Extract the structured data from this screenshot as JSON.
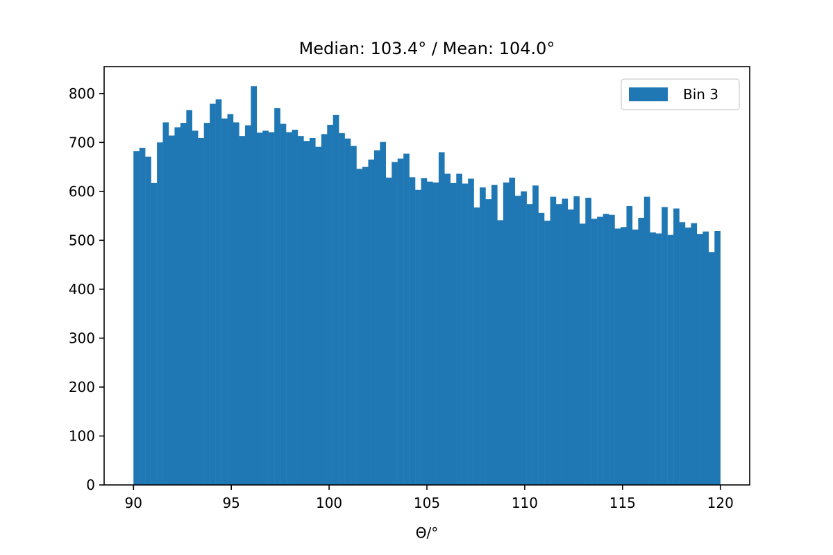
{
  "chart_data": {
    "type": "bar",
    "subtype": "histogram",
    "title": "Median: 103.4° / Mean: 104.0°",
    "xlabel": "Θ/°",
    "ylabel": "",
    "xlim": [
      88.5,
      121.5
    ],
    "ylim": [
      0,
      855
    ],
    "x_ticks": [
      90,
      95,
      100,
      105,
      110,
      115,
      120
    ],
    "y_ticks": [
      0,
      100,
      200,
      300,
      400,
      500,
      600,
      700,
      800
    ],
    "bin_range": [
      90,
      120
    ],
    "bin_width": 0.3,
    "legend": {
      "position": "upper right",
      "entries": [
        "Bin 3"
      ]
    },
    "grid": false,
    "series": [
      {
        "name": "Bin 3",
        "color": "#1f77b4",
        "values": [
          682,
          689,
          671,
          617,
          700,
          741,
          714,
          731,
          740,
          766,
          724,
          709,
          740,
          779,
          788,
          749,
          758,
          741,
          713,
          735,
          815,
          720,
          724,
          721,
          770,
          738,
          721,
          726,
          713,
          703,
          709,
          691,
          717,
          736,
          756,
          719,
          708,
          693,
          646,
          650,
          665,
          684,
          701,
          628,
          660,
          667,
          677,
          629,
          603,
          627,
          620,
          618,
          680,
          636,
          617,
          636,
          616,
          626,
          567,
          608,
          584,
          613,
          541,
          618,
          628,
          591,
          600,
          574,
          612,
          556,
          540,
          589,
          574,
          585,
          563,
          590,
          534,
          587,
          544,
          548,
          554,
          552,
          524,
          527,
          570,
          522,
          546,
          589,
          516,
          514,
          568,
          511,
          565,
          537,
          526,
          535,
          513,
          518,
          476,
          519
        ]
      }
    ]
  }
}
